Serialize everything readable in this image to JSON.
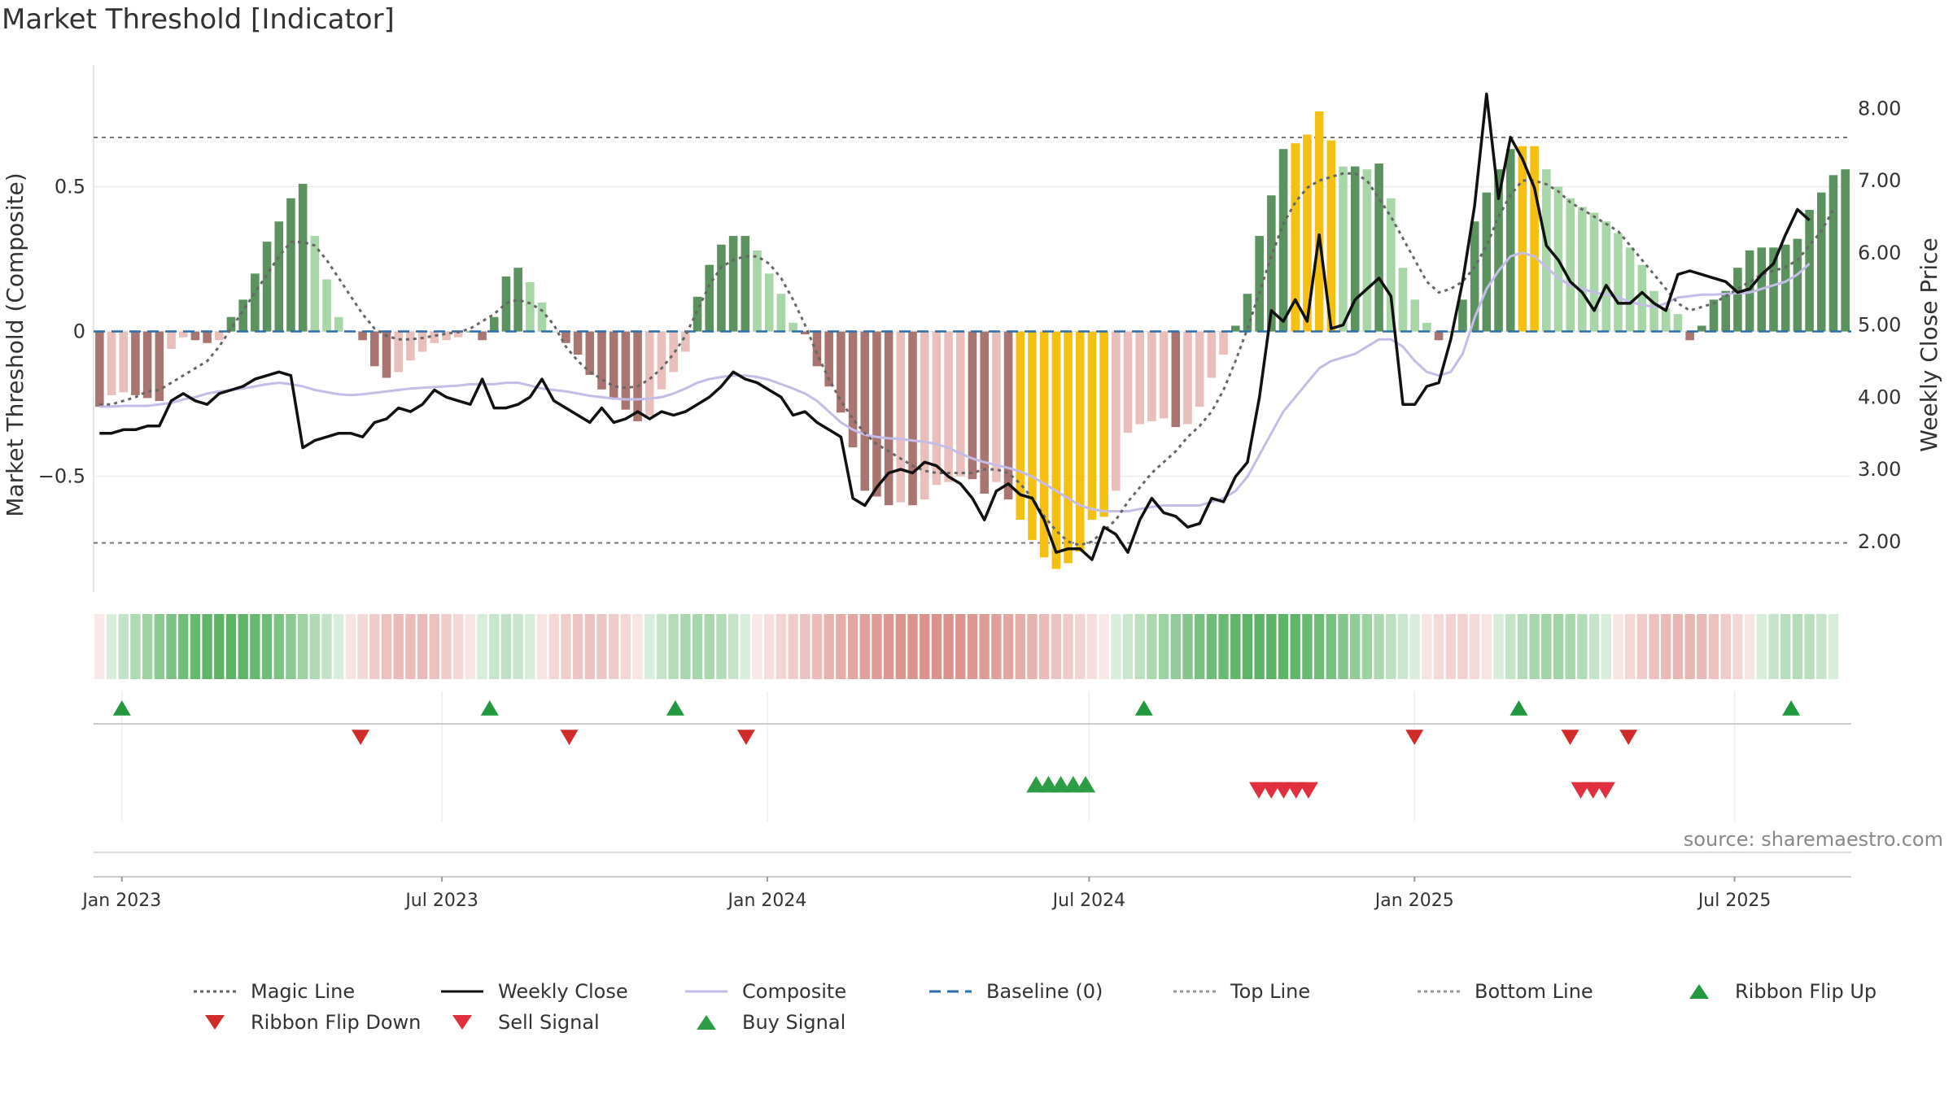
{
  "page": {
    "title": "Market Threshold [Indicator]",
    "source": "source: sharemaestro.com"
  },
  "chart_data": {
    "type": "bar",
    "title": "Market Threshold [Indicator]",
    "ylabel_left": "Market Threshold (Composite)",
    "ylabel_right": "Weekly Close Price",
    "ylim_left": [
      -0.9,
      0.92
    ],
    "ylim_right": [
      1.3,
      8.6
    ],
    "yticks_left": [
      {
        "v": 0.5,
        "label": "0.5"
      },
      {
        "v": 0,
        "label": "0"
      },
      {
        "v": -0.5,
        "label": "−0.5"
      }
    ],
    "yticks_right": [
      {
        "v": 8,
        "label": "8.00"
      },
      {
        "v": 7,
        "label": "7.00"
      },
      {
        "v": 6,
        "label": "6.00"
      },
      {
        "v": 5,
        "label": "5.00"
      },
      {
        "v": 4,
        "label": "4.00"
      },
      {
        "v": 3,
        "label": "3.00"
      },
      {
        "v": 2,
        "label": "2.00"
      }
    ],
    "top_line": 0.67,
    "bottom_line": -0.73,
    "baseline": 0,
    "x_start": "2022-12-16",
    "x_end": "2025-09-05",
    "xticks": [
      {
        "date": "2023-01-01",
        "label": "Jan 2023"
      },
      {
        "date": "2023-07-01",
        "label": "Jul 2023"
      },
      {
        "date": "2024-01-01",
        "label": "Jan 2024"
      },
      {
        "date": "2024-07-01",
        "label": "Jul 2024"
      },
      {
        "date": "2025-01-01",
        "label": "Jan 2025"
      },
      {
        "date": "2025-07-01",
        "label": "Jul 2025"
      }
    ],
    "composite_bars": [
      -0.26,
      -0.22,
      -0.21,
      -0.22,
      -0.23,
      -0.24,
      -0.06,
      -0.02,
      -0.03,
      -0.04,
      -0.03,
      0.05,
      0.11,
      0.2,
      0.31,
      0.38,
      0.46,
      0.51,
      0.33,
      0.18,
      0.05,
      0.0,
      -0.03,
      -0.12,
      -0.16,
      -0.14,
      -0.1,
      -0.07,
      -0.04,
      -0.03,
      -0.02,
      0.0,
      -0.03,
      0.05,
      0.19,
      0.22,
      0.17,
      0.1,
      0.0,
      -0.04,
      -0.08,
      -0.15,
      -0.2,
      -0.23,
      -0.27,
      -0.31,
      -0.29,
      -0.2,
      -0.14,
      -0.07,
      0.12,
      0.23,
      0.3,
      0.33,
      0.33,
      0.28,
      0.2,
      0.13,
      0.03,
      -0.01,
      -0.12,
      -0.19,
      -0.28,
      -0.4,
      -0.55,
      -0.57,
      -0.6,
      -0.59,
      -0.6,
      -0.58,
      -0.53,
      -0.52,
      -0.5,
      -0.51,
      -0.56,
      -0.52,
      -0.58,
      -0.65,
      -0.72,
      -0.78,
      -0.82,
      -0.8,
      -0.76,
      -0.65,
      -0.64,
      -0.55,
      -0.35,
      -0.32,
      -0.31,
      -0.3,
      -0.33,
      -0.32,
      -0.26,
      -0.16,
      -0.08,
      0.02,
      0.13,
      0.33,
      0.47,
      0.63,
      0.65,
      0.68,
      0.76,
      0.66,
      0.57,
      0.57,
      0.56,
      0.58,
      0.46,
      0.22,
      0.11,
      0.03,
      -0.03,
      0.0,
      0.11,
      0.38,
      0.48,
      0.56,
      0.63,
      0.64,
      0.64,
      0.56,
      0.5,
      0.46,
      0.43,
      0.41,
      0.38,
      0.34,
      0.29,
      0.23,
      0.14,
      0.08,
      0.06,
      -0.03,
      0.02,
      0.11,
      0.14,
      0.22,
      0.28,
      0.29,
      0.29,
      0.3,
      0.32,
      0.42,
      0.48,
      0.54,
      0.56
    ],
    "weekly_close": [
      3.5,
      3.5,
      3.55,
      3.55,
      3.6,
      3.6,
      3.95,
      4.05,
      3.95,
      3.9,
      4.05,
      4.1,
      4.15,
      4.25,
      4.3,
      4.35,
      4.3,
      3.3,
      3.4,
      3.45,
      3.5,
      3.5,
      3.45,
      3.65,
      3.7,
      3.85,
      3.8,
      3.9,
      4.1,
      4.0,
      3.95,
      3.9,
      4.25,
      3.85,
      3.85,
      3.9,
      4.0,
      4.25,
      3.95,
      3.85,
      3.75,
      3.65,
      3.85,
      3.65,
      3.7,
      3.8,
      3.7,
      3.8,
      3.75,
      3.8,
      3.9,
      4.0,
      4.15,
      4.35,
      4.25,
      4.2,
      4.1,
      4.0,
      3.75,
      3.8,
      3.65,
      3.55,
      3.45,
      2.6,
      2.5,
      2.75,
      2.95,
      3.0,
      2.95,
      3.1,
      3.05,
      2.9,
      2.8,
      2.6,
      2.3,
      2.7,
      2.8,
      2.65,
      2.6,
      2.3,
      1.85,
      1.9,
      1.9,
      1.75,
      2.2,
      2.1,
      1.85,
      2.3,
      2.6,
      2.4,
      2.35,
      2.2,
      2.25,
      2.6,
      2.55,
      2.9,
      3.1,
      4.0,
      5.2,
      5.05,
      5.35,
      5.05,
      6.25,
      4.95,
      5.0,
      5.35,
      5.5,
      5.65,
      5.4,
      3.9,
      3.9,
      4.15,
      4.2,
      4.8,
      5.6,
      6.65,
      8.2,
      6.75,
      7.6,
      7.3,
      6.9,
      6.1,
      5.9,
      5.6,
      5.45,
      5.2,
      5.55,
      5.3,
      5.3,
      5.45,
      5.3,
      5.2,
      5.7,
      5.75,
      5.7,
      5.65,
      5.6,
      5.45,
      5.5,
      5.7,
      5.85,
      6.25,
      6.6,
      6.45
    ],
    "composite_line": [
      3.87,
      3.87,
      3.88,
      3.88,
      3.88,
      3.9,
      3.92,
      3.97,
      4.0,
      4.05,
      4.08,
      4.1,
      4.12,
      4.15,
      4.18,
      4.2,
      4.18,
      4.15,
      4.1,
      4.07,
      4.04,
      4.03,
      4.04,
      4.06,
      4.08,
      4.1,
      4.12,
      4.13,
      4.14,
      4.15,
      4.16,
      4.18,
      4.18,
      4.18,
      4.2,
      4.2,
      4.16,
      4.12,
      4.1,
      4.08,
      4.05,
      4.02,
      4.0,
      3.98,
      3.97,
      3.97,
      3.98,
      4.0,
      4.05,
      4.12,
      4.2,
      4.25,
      4.28,
      4.3,
      4.3,
      4.28,
      4.24,
      4.18,
      4.12,
      4.05,
      3.95,
      3.8,
      3.65,
      3.55,
      3.48,
      3.45,
      3.43,
      3.42,
      3.4,
      3.38,
      3.35,
      3.3,
      3.22,
      3.15,
      3.1,
      3.06,
      3.02,
      2.97,
      2.9,
      2.8,
      2.7,
      2.6,
      2.5,
      2.45,
      2.42,
      2.42,
      2.42,
      2.45,
      2.48,
      2.5,
      2.5,
      2.5,
      2.5,
      2.55,
      2.6,
      2.7,
      2.9,
      3.2,
      3.5,
      3.8,
      4.0,
      4.2,
      4.4,
      4.5,
      4.55,
      4.6,
      4.7,
      4.8,
      4.8,
      4.7,
      4.5,
      4.35,
      4.3,
      4.35,
      4.6,
      5.1,
      5.5,
      5.75,
      5.95,
      6.0,
      5.95,
      5.8,
      5.65,
      5.55,
      5.5,
      5.45,
      5.42,
      5.38,
      5.32,
      5.28,
      5.25,
      5.3,
      5.38,
      5.4,
      5.42,
      5.42,
      5.43,
      5.44,
      5.45,
      5.5,
      5.55,
      5.6,
      5.7,
      5.85
    ],
    "magic_line": [
      3.9,
      3.9,
      3.95,
      4.0,
      4.08,
      4.1,
      4.2,
      4.3,
      4.4,
      4.5,
      4.7,
      4.95,
      5.2,
      5.45,
      5.7,
      5.95,
      6.15,
      6.15,
      6.1,
      5.9,
      5.65,
      5.4,
      5.15,
      4.95,
      4.85,
      4.8,
      4.8,
      4.82,
      4.85,
      4.88,
      4.9,
      4.95,
      5.05,
      5.15,
      5.3,
      5.35,
      5.3,
      5.2,
      5.0,
      4.7,
      4.5,
      4.35,
      4.25,
      4.15,
      4.13,
      4.15,
      4.25,
      4.4,
      4.6,
      4.85,
      5.2,
      5.55,
      5.8,
      5.9,
      5.95,
      5.95,
      5.85,
      5.65,
      5.35,
      5.0,
      4.6,
      4.25,
      3.95,
      3.7,
      3.5,
      3.35,
      3.25,
      3.15,
      3.05,
      2.98,
      2.95,
      2.95,
      2.95,
      2.95,
      3.0,
      3.0,
      2.95,
      2.8,
      2.6,
      2.35,
      2.15,
      2.0,
      1.95,
      2.0,
      2.15,
      2.3,
      2.55,
      2.75,
      2.95,
      3.1,
      3.25,
      3.45,
      3.6,
      3.8,
      4.1,
      4.5,
      4.95,
      5.45,
      5.95,
      6.4,
      6.7,
      6.9,
      7.0,
      7.05,
      7.1,
      7.1,
      7.0,
      6.75,
      6.5,
      6.2,
      5.9,
      5.6,
      5.45,
      5.5,
      5.6,
      5.8,
      6.1,
      6.5,
      6.8,
      7.0,
      7.0,
      6.95,
      6.85,
      6.7,
      6.6,
      6.5,
      6.4,
      6.3,
      6.1,
      5.9,
      5.7,
      5.5,
      5.3,
      5.2,
      5.25,
      5.3,
      5.4,
      5.5,
      5.6,
      5.7,
      5.75,
      5.8,
      5.9,
      6.1,
      6.3,
      6.6
    ],
    "ribbon": [
      0,
      1,
      1,
      1,
      1,
      1,
      1,
      1,
      1,
      1,
      1,
      1,
      1,
      1,
      1,
      1,
      1,
      1,
      1,
      1,
      1,
      0,
      0,
      0,
      0,
      0,
      0,
      0,
      0,
      0,
      0,
      0,
      1,
      1,
      1,
      1,
      1,
      0,
      0,
      0,
      0,
      0,
      0,
      0,
      0,
      0,
      1,
      1,
      1,
      1,
      1,
      1,
      1,
      1,
      1,
      0,
      0,
      0,
      0,
      0,
      0,
      0,
      0,
      0,
      0,
      0,
      0,
      0,
      0,
      0,
      0,
      0,
      0,
      0,
      0,
      0,
      0,
      0,
      0,
      0,
      0,
      0,
      0,
      0,
      0,
      1,
      1,
      1,
      1,
      1,
      1,
      1,
      1,
      1,
      1,
      1,
      1,
      1,
      1,
      1,
      1,
      1,
      1,
      1,
      1,
      1,
      1,
      1,
      1,
      1,
      1,
      0,
      0,
      0,
      0,
      0,
      0,
      1,
      1,
      1,
      1,
      1,
      1,
      1,
      1,
      1,
      1,
      0,
      0,
      0,
      0,
      0,
      0,
      0,
      0,
      0,
      0,
      0,
      0,
      1,
      1,
      1,
      1,
      1,
      1,
      1
    ],
    "ribbon_flip_up": [
      "2023-01-01",
      "2023-07-28",
      "2023-11-10",
      "2024-08-01",
      "2025-03-01",
      "2025-08-02"
    ],
    "ribbon_flip_down": [
      "2023-05-16",
      "2023-09-11",
      "2023-12-20",
      "2025-01-01",
      "2025-03-30",
      "2025-05-02"
    ],
    "buy_signal": [
      "2024-06-01",
      "2024-06-08",
      "2024-06-15",
      "2024-06-22",
      "2024-06-29"
    ],
    "sell_signal": [
      "2024-10-05",
      "2024-10-12",
      "2024-10-19",
      "2024-10-26",
      "2024-11-02",
      "2025-04-05",
      "2025-04-12",
      "2025-04-19"
    ],
    "colors": {
      "bar_pos_strong": "#5c9160",
      "bar_pos_weak": "#a9d6a8",
      "bar_neg_strong": "#a97570",
      "bar_neg_weak": "#e8bfbb",
      "bar_extreme": "#f6c012",
      "weekly_close": "#111111",
      "composite": "#c4bde8",
      "magic_line": "#666666",
      "baseline": "#2d6fa8",
      "threshold": "#777777",
      "ribbon_up": "#4aab55",
      "ribbon_down": "#d98580",
      "flip_up": "#22993f",
      "flip_down": "#d12a2a",
      "sell": "#e0303f",
      "buy": "#2c9c46"
    }
  },
  "legend": [
    {
      "label": "Magic Line",
      "icon": "dotted-line",
      "color": "#666666"
    },
    {
      "label": "Weekly Close",
      "icon": "solid-line",
      "color": "#111111"
    },
    {
      "label": "Composite",
      "icon": "solid-line",
      "color": "#c4bde8"
    },
    {
      "label": "Baseline (0)",
      "icon": "dashed-line",
      "color": "#2d6fa8"
    },
    {
      "label": "Top Line",
      "icon": "dotted-line",
      "color": "#999999"
    },
    {
      "label": "Bottom Line",
      "icon": "dotted-line",
      "color": "#999999"
    },
    {
      "label": "Ribbon Flip Up",
      "icon": "triangle-up",
      "color": "#22993f"
    },
    {
      "label": "Ribbon Flip Down",
      "icon": "triangle-down",
      "color": "#d12a2a"
    },
    {
      "label": "Sell Signal",
      "icon": "triangle-down",
      "color": "#e0303f"
    },
    {
      "label": "Buy Signal",
      "icon": "triangle-up",
      "color": "#2c9c46"
    }
  ]
}
